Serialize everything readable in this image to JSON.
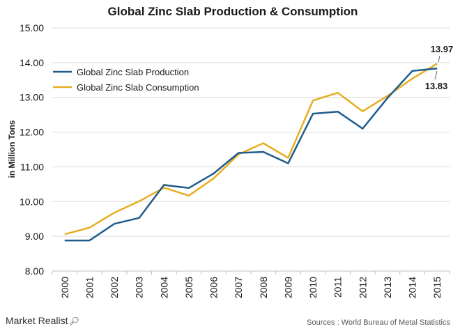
{
  "brand": {
    "name": "Market Realist",
    "icon": "magnifier-icon"
  },
  "source": "Sources : World Bureau of Metal Statistics",
  "colors": {
    "production": "#1f5c8b",
    "consumption": "#e8ad21"
  },
  "chart_data": {
    "type": "line",
    "title": "Global Zinc Slab Production & Consumption",
    "xlabel": "",
    "ylabel": "in Million Tons",
    "ylim": [
      8.0,
      15.0
    ],
    "yticks": [
      "8.00",
      "9.00",
      "10.00",
      "11.00",
      "12.00",
      "13.00",
      "14.00",
      "15.00"
    ],
    "grid": true,
    "legend": "top-left",
    "categories": [
      "2000",
      "2001",
      "2002",
      "2003",
      "2004",
      "2005",
      "2006",
      "2007",
      "2008",
      "2009",
      "2010",
      "2011",
      "2012",
      "2013",
      "2014",
      "2015"
    ],
    "series": [
      {
        "name": "Global Zinc Slab Production",
        "values": [
          8.88,
          8.88,
          9.36,
          9.53,
          10.48,
          10.39,
          10.81,
          11.4,
          11.43,
          11.1,
          12.53,
          12.59,
          12.1,
          12.98,
          13.76,
          13.83
        ]
      },
      {
        "name": "Global Zinc Slab Consumption",
        "values": [
          9.06,
          9.25,
          9.68,
          10.01,
          10.4,
          10.17,
          10.67,
          11.36,
          11.68,
          11.26,
          12.91,
          13.13,
          12.6,
          13.04,
          13.54,
          13.97
        ]
      }
    ],
    "annotations": [
      "13.97",
      "13.83"
    ]
  }
}
